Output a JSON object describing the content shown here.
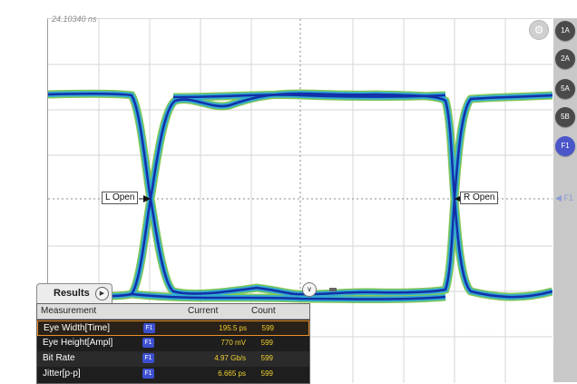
{
  "timestamp": "24.10340 ns",
  "settings_icon": "wrench-icon",
  "channels": [
    {
      "label": "1A",
      "active": false
    },
    {
      "label": "2A",
      "active": false
    },
    {
      "label": "5A",
      "active": false
    },
    {
      "label": "5B",
      "active": false
    },
    {
      "label": "F1",
      "active": true
    }
  ],
  "side_marker": "◀ F1",
  "markers": {
    "left_open": "L Open",
    "right_open": "R Open"
  },
  "results": {
    "tab_label": "Results",
    "headers": {
      "measurement": "Measurement",
      "current": "Current",
      "count": "Count"
    },
    "rows": [
      {
        "name": "Eye Width[Time]",
        "source": "F1",
        "current": "195.5 ps",
        "count": "599"
      },
      {
        "name": "Eye Height[Ampl]",
        "source": "F1",
        "current": "770 mV",
        "count": "599"
      },
      {
        "name": "Bit Rate",
        "source": "F1",
        "current": "4.97 Gb/s",
        "count": "599"
      },
      {
        "name": "Jitter[p-p]",
        "source": "F1",
        "current": "6.665 ps",
        "count": "599"
      }
    ]
  },
  "colors": {
    "trace_outer": "#6fbf3a",
    "trace_mid": "#2aa8e0",
    "trace_core": "#1230a8",
    "active_channel": "#4b56c8",
    "value_text": "#f0d030"
  }
}
